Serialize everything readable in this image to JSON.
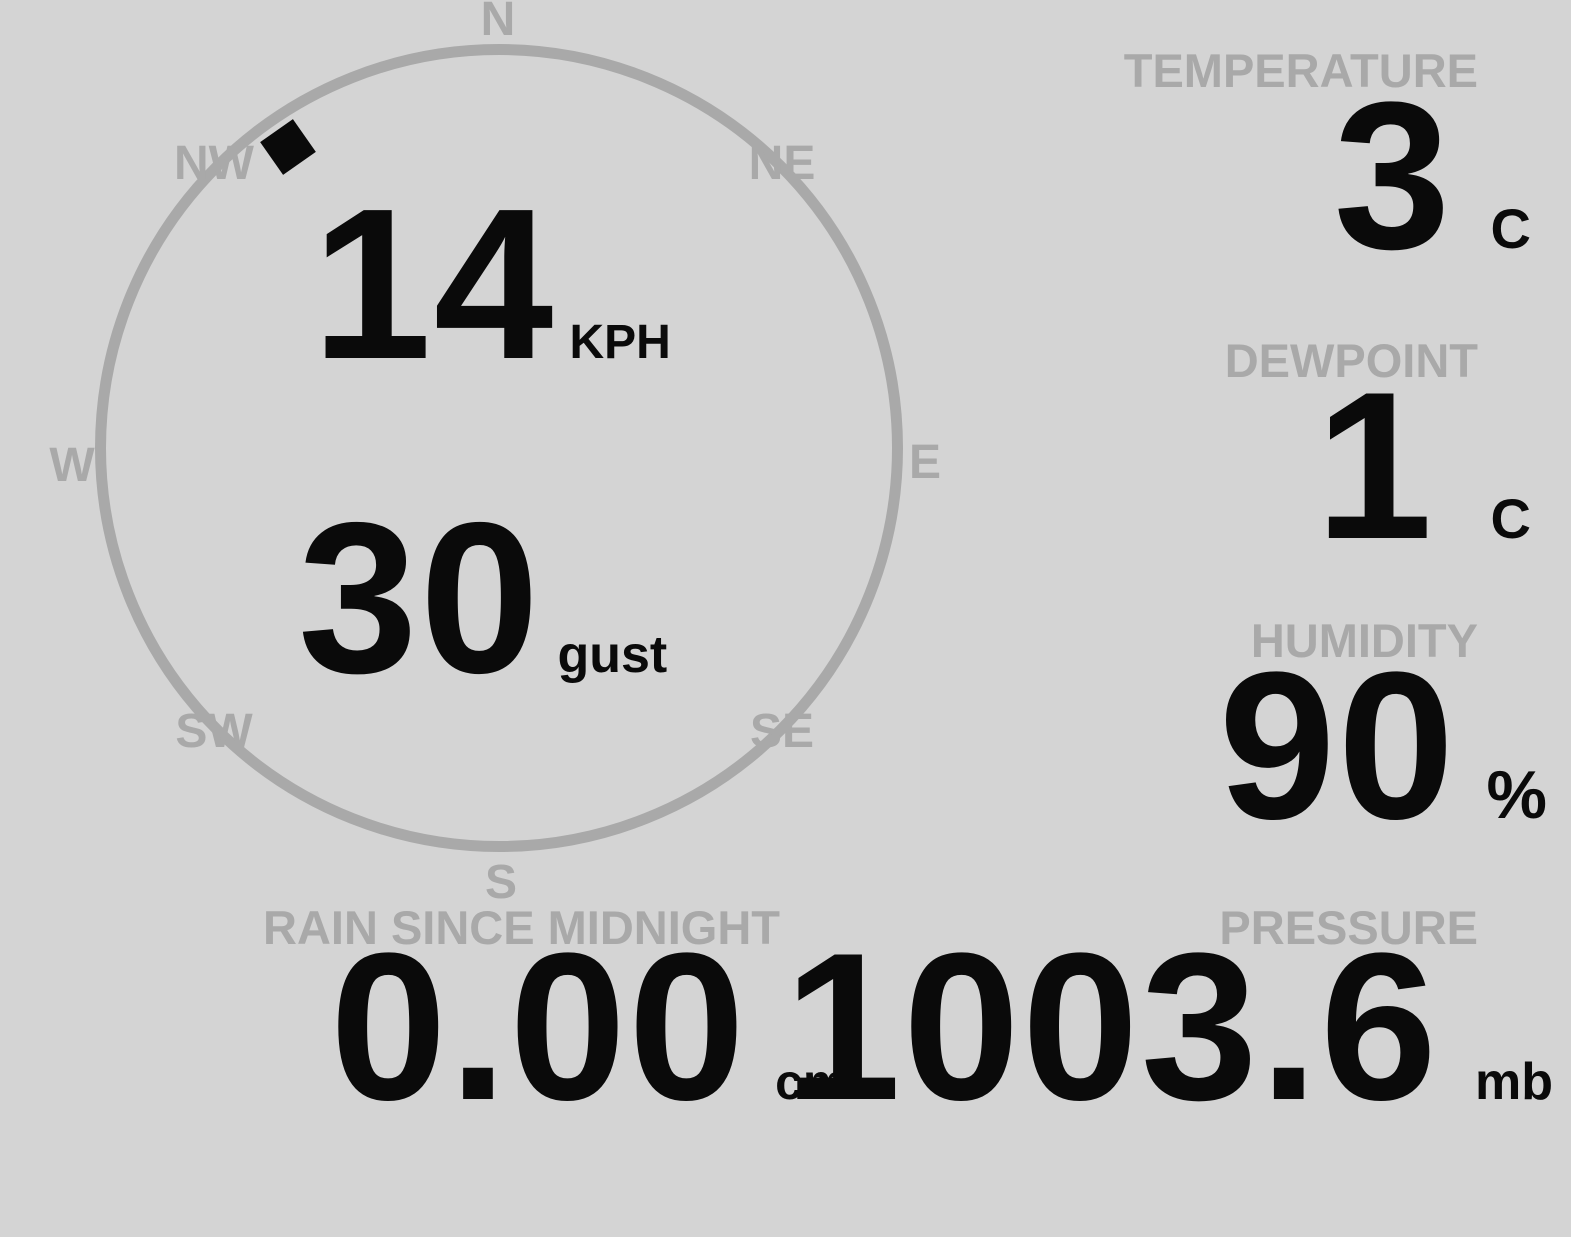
{
  "theme": {
    "background_color": "#d4d4d4",
    "muted_gray": "#a9a9a9",
    "text_black": "#0a0a0a"
  },
  "wind": {
    "speed_value": "14",
    "speed_unit": "KPH",
    "gust_value": "30",
    "gust_unit": "gust",
    "direction_degrees": 325,
    "compass": {
      "n": "N",
      "ne": "NE",
      "e": "E",
      "se": "SE",
      "s": "S",
      "sw": "SW",
      "w": "W",
      "nw": "NW"
    }
  },
  "metrics": {
    "temperature": {
      "label": "TEMPERATURE",
      "value": "3",
      "unit": "C"
    },
    "dewpoint": {
      "label": "DEWPOINT",
      "value": "1",
      "unit": "C"
    },
    "humidity": {
      "label": "HUMIDITY",
      "value": "90",
      "unit": "%"
    },
    "rain": {
      "label": "RAIN SINCE MIDNIGHT",
      "value": "0.00",
      "unit": "cm"
    },
    "pressure": {
      "label": "PRESSURE",
      "value": "1003.6",
      "unit": "mb"
    }
  }
}
